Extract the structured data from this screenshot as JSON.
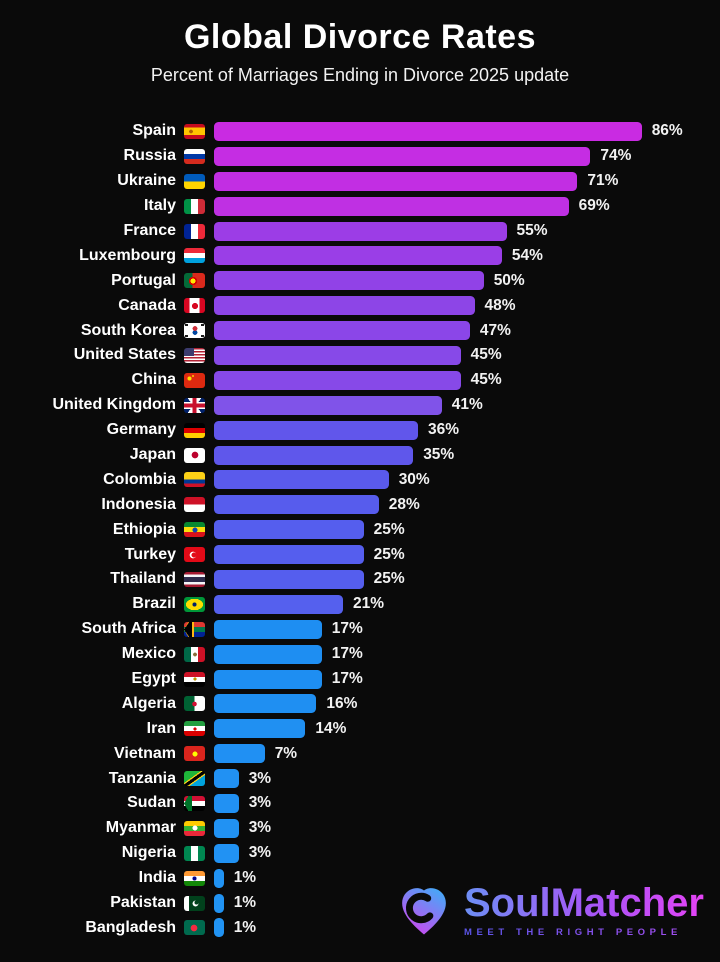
{
  "title": "Global Divorce Rates",
  "subtitle": "Percent of Marriages Ending in Divorce 2025 update",
  "chart_data": {
    "type": "bar",
    "orientation": "horizontal",
    "title": "Global Divorce Rates",
    "subtitle": "Percent of Marriages Ending in Divorce 2025 update",
    "unit": "%",
    "xlim": [
      0,
      86
    ],
    "categories": [
      "Spain",
      "Russia",
      "Ukraine",
      "Italy",
      "France",
      "Luxembourg",
      "Portugal",
      "Canada",
      "South Korea",
      "United States",
      "China",
      "United Kingdom",
      "Germany",
      "Japan",
      "Colombia",
      "Indonesia",
      "Ethiopia",
      "Turkey",
      "Thailand",
      "Brazil",
      "South Africa",
      "Mexico",
      "Egypt",
      "Algeria",
      "Iran",
      "Vietnam",
      "Tanzania",
      "Sudan",
      "Myanmar",
      "Nigeria",
      "India",
      "Pakistan",
      "Bangladesh"
    ],
    "values": [
      86,
      74,
      71,
      69,
      55,
      54,
      50,
      48,
      47,
      45,
      45,
      41,
      36,
      35,
      30,
      28,
      25,
      25,
      25,
      21,
      17,
      17,
      17,
      16,
      14,
      7,
      3,
      3,
      3,
      3,
      1,
      1,
      1
    ],
    "bar_colors": [
      "#c92be2",
      "#c52de3",
      "#c22ee3",
      "#bf30e3",
      "#9c3de6",
      "#9a3ee7",
      "#9142e7",
      "#8d45e7",
      "#8b46e8",
      "#8749e8",
      "#8749e8",
      "#8053e9",
      "#6156eb",
      "#5f57eb",
      "#5a5aec",
      "#575ced",
      "#555eee",
      "#555eee",
      "#555eee",
      "#5560ee",
      "#1e8ef2",
      "#1e8ef2",
      "#1e8ef2",
      "#1f8ff2",
      "#2090f2",
      "#2090f3",
      "#2191f3",
      "#2191f3",
      "#2192f3",
      "#2192f3",
      "#2193f3",
      "#2193f3",
      "#2193f3"
    ]
  },
  "flags": {
    "Spain": "radial-gradient(circle, #b06000 0 55%, transparent 60%) 28% 50%/4px 5px no-repeat, linear-gradient(180deg, #c60b1e 0 25%, #ffc400 25% 75%, #c60b1e 75%)",
    "Russia": "linear-gradient(180deg, #ffffff 0 33%, #0039a6 33% 66%, #d52b1e 66%)",
    "Ukraine": "linear-gradient(180deg, #005bbb 0 50%, #ffd500 50%)",
    "Italy": "linear-gradient(90deg, #009246 0 33%, #ffffff 33% 66%, #ce2b37 66%)",
    "France": "linear-gradient(90deg, #002395 0 33%, #ffffff 33% 66%, #ed2939 66%)",
    "Luxembourg": "linear-gradient(180deg, #ed2939 0 33%, #ffffff 33% 66%, #00a1de 66%)",
    "Portugal": "radial-gradient(circle, #ffe900 0 45%, #d40000 45% 72%, transparent 76%) 36% 50%/8px 8px no-repeat, linear-gradient(90deg, #046a38 0 40%, #da291c 40%)",
    "Canada": "radial-gradient(circle, #d80621 0 58%, transparent 64%) 50% 50%/6px 8px no-repeat, linear-gradient(90deg, #d80621 0 27%, #ffffff 27% 73%, #d80621 73%)",
    "South Korea": "radial-gradient(circle, #cd2e3a 0 58%, transparent 64%) 50% 32%/6px 5px no-repeat, radial-gradient(circle, #0047a0 0 58%, transparent 64%) 50% 66%/6px 5px no-repeat, linear-gradient(#1a1a1a,#1a1a1a) 8% 10%/3px 2px no-repeat, linear-gradient(#1a1a1a,#1a1a1a) 92% 10%/3px 2px no-repeat, linear-gradient(#1a1a1a,#1a1a1a) 8% 90%/3px 2px no-repeat, linear-gradient(#1a1a1a,#1a1a1a) 92% 90%/3px 2px no-repeat, linear-gradient(#ffffff,#ffffff)",
    "United States": "linear-gradient(#3c3b6e,#3c3b6e) 0 0/10px 8px no-repeat, repeating-linear-gradient(180deg, #b22234 0 1.5px, #ffffff 1.5px 3px)",
    "China": "radial-gradient(circle, #ffde00 0 55%, transparent 62%) 18% 28%/5px 5px no-repeat, radial-gradient(circle, #ffde00 0 55%, transparent 62%) 40% 16%/2px 2px no-repeat, linear-gradient(#de2910,#de2910)",
    "United Kingdom": "linear-gradient(90deg, transparent 0 40%, #c8102e 40% 60%, transparent 60%), linear-gradient(0deg, transparent 0 36%, #c8102e 36% 64%, transparent 64%), linear-gradient(90deg, transparent 0 33%, #ffffff 33% 67%, transparent 67%), linear-gradient(0deg, transparent 0 27%, #ffffff 27% 73%, transparent 73%), linear-gradient(55deg, transparent 0 45%, #ffffff 45% 55%, transparent 55%), linear-gradient(-55deg, transparent 0 45%, #ffffff 45% 55%, transparent 55%), linear-gradient(#012169,#012169)",
    "Germany": "linear-gradient(180deg, #000000 0 33%, #dd0000 33% 66%, #ffce00 66%)",
    "Japan": "radial-gradient(circle, #bc002d 0 55%, transparent 62%) 50% 50%/8px 8px no-repeat, linear-gradient(#ffffff,#ffffff)",
    "Colombia": "linear-gradient(180deg, #fcd116 0 50%, #003893 50% 75%, #ce1126 75%)",
    "Indonesia": "linear-gradient(180deg, #ce1126 0 50%, #ffffff 50%)",
    "Ethiopia": "radial-gradient(circle, #0f47af 0 55%, transparent 62%) 50% 50%/6px 6px no-repeat, linear-gradient(180deg, #078930 0 33%, #fcdd09 33% 66%, #da121a 66%)",
    "Turkey": "radial-gradient(circle, #e30a17 0 55%, transparent 62%) 44% 50%/6px 6px no-repeat, radial-gradient(circle, #ffffff 0 55%, transparent 62%) 36% 50%/8px 8px no-repeat, linear-gradient(#e30a17,#e30a17)",
    "Thailand": "linear-gradient(180deg, #a51931 0 17%, #f4f5f8 17% 33%, #2d2a4a 33% 67%, #f4f5f8 67% 83%, #a51931 83%)",
    "Brazil": "radial-gradient(circle, #012169 0 55%, transparent 62%) 50% 50%/5px 5px no-repeat, radial-gradient(9px 6px at 50% 50%, #fedd00 0 95%, transparent 95%), linear-gradient(#009739,#009739)",
    "South Africa": "conic-gradient(from 35deg at 0% 50%, #000000 0 110deg, transparent 110deg) 0 50%/8px 15px no-repeat, conic-gradient(from 30deg at 0% 50%, #ffb612 0 120deg, transparent 120deg) 0 50%/10px 15px no-repeat, linear-gradient(180deg, transparent 0 32%, #007a4d 32% 68%, transparent 68%), linear-gradient(180deg, #de3831 0 50%, #002395 50%)",
    "Mexico": "radial-gradient(circle, #8a6d3b 0 55%, transparent 62%) 50% 50%/4px 5px no-repeat, linear-gradient(90deg, #006847 0 33%, #ffffff 33% 66%, #ce1126 66%)",
    "Egypt": "radial-gradient(circle, #c09300 0 55%, transparent 62%) 50% 50%/4px 4px no-repeat, linear-gradient(180deg, #ce1126 0 33%, #ffffff 33% 66%, #000000 66%)",
    "Algeria": "radial-gradient(circle, #d21034 0 55%, transparent 62%) 50% 50%/5px 6px no-repeat, linear-gradient(90deg, #006233 0 50%, #ffffff 50%)",
    "Iran": "radial-gradient(circle, #da0000 0 55%, transparent 62%) 50% 50%/4px 4px no-repeat, linear-gradient(180deg, #239f40 0 33%, #ffffff 33% 66%, #da0000 66%)",
    "Vietnam": "radial-gradient(circle, #ffff00 0 55%, transparent 62%) 50% 50%/6px 6px no-repeat, linear-gradient(#da251d,#da251d)",
    "Tanzania": "linear-gradient(to bottom right, #1eb53a 0 40%, #fbd116 40% 45%, #000000 45% 58%, #fbd116 58% 63%, #00a3dd 63%)",
    "Sudan": "conic-gradient(from 30deg at 0% 50%, #007229 0 120deg, transparent 120deg) 0 50%/8px 15px no-repeat, linear-gradient(180deg, #d21034 0 33%, #ffffff 33% 66%, #000000 66%)",
    "Myanmar": "radial-gradient(circle, #ffffff 0 55%, transparent 62%) 50% 50%/6px 6px no-repeat, linear-gradient(180deg, #fecb00 0 33%, #34b233 33% 66%, #ea2839 66%)",
    "Nigeria": "linear-gradient(90deg, #008751 0 33%, #ffffff 33% 66%, #008751 66%)",
    "India": "radial-gradient(circle, #000088 0 55%, transparent 62%) 50% 50%/5px 5px no-repeat, linear-gradient(180deg, #ff9933 0 33%, #ffffff 33% 66%, #138808 66%)",
    "Pakistan": "radial-gradient(circle, #01411c 0 55%, transparent 62%) 64% 44%/5px 5px no-repeat, radial-gradient(circle, #ffffff 0 55%, transparent 62%) 58% 50%/7px 7px no-repeat, linear-gradient(90deg, #ffffff 0 25%, #01411c 25%)",
    "Bangladesh": "radial-gradient(circle, #f42a41 0 55%, transparent 62%) 45% 50%/8px 8px no-repeat, linear-gradient(#006a4e,#006a4e)"
  },
  "logo": {
    "name": "SoulMatcher",
    "tagline": "MEET THE RIGHT PEOPLE",
    "wordmark_gradient": [
      "#6d8ff5",
      "#a855f7",
      "#e543f5"
    ],
    "tagline_gradient": [
      "#5b55e8",
      "#a84df0"
    ],
    "heart_gradient": [
      "#4aa5f7",
      "#c94af0"
    ]
  },
  "colors": {
    "background": "#0a0a0a",
    "title_text": "#ffffff",
    "value_text": "#f2f2f2"
  }
}
